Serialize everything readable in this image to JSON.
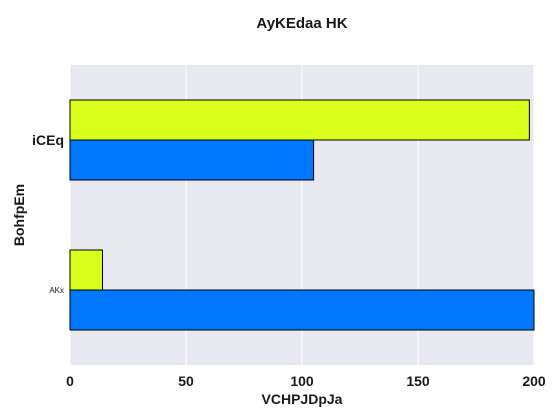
{
  "chart_data": {
    "type": "bar",
    "orientation": "horizontal",
    "title": "AyKEdaa HK",
    "xlabel": "VCHPJDpJa",
    "ylabel": "BohfpEm",
    "xlim": [
      0,
      200
    ],
    "xticks": [
      "0",
      "50",
      "100",
      "150",
      "200"
    ],
    "xtick_values": [
      0,
      50,
      100,
      150,
      200
    ],
    "categories": [
      "iCEq",
      "AKx"
    ],
    "series": [
      {
        "color": "#d9ff1a",
        "values": [
          198,
          14
        ]
      },
      {
        "color": "#0077ff",
        "values": [
          105,
          200
        ]
      }
    ],
    "plot_background": "#e8e8f0",
    "grid": true
  }
}
